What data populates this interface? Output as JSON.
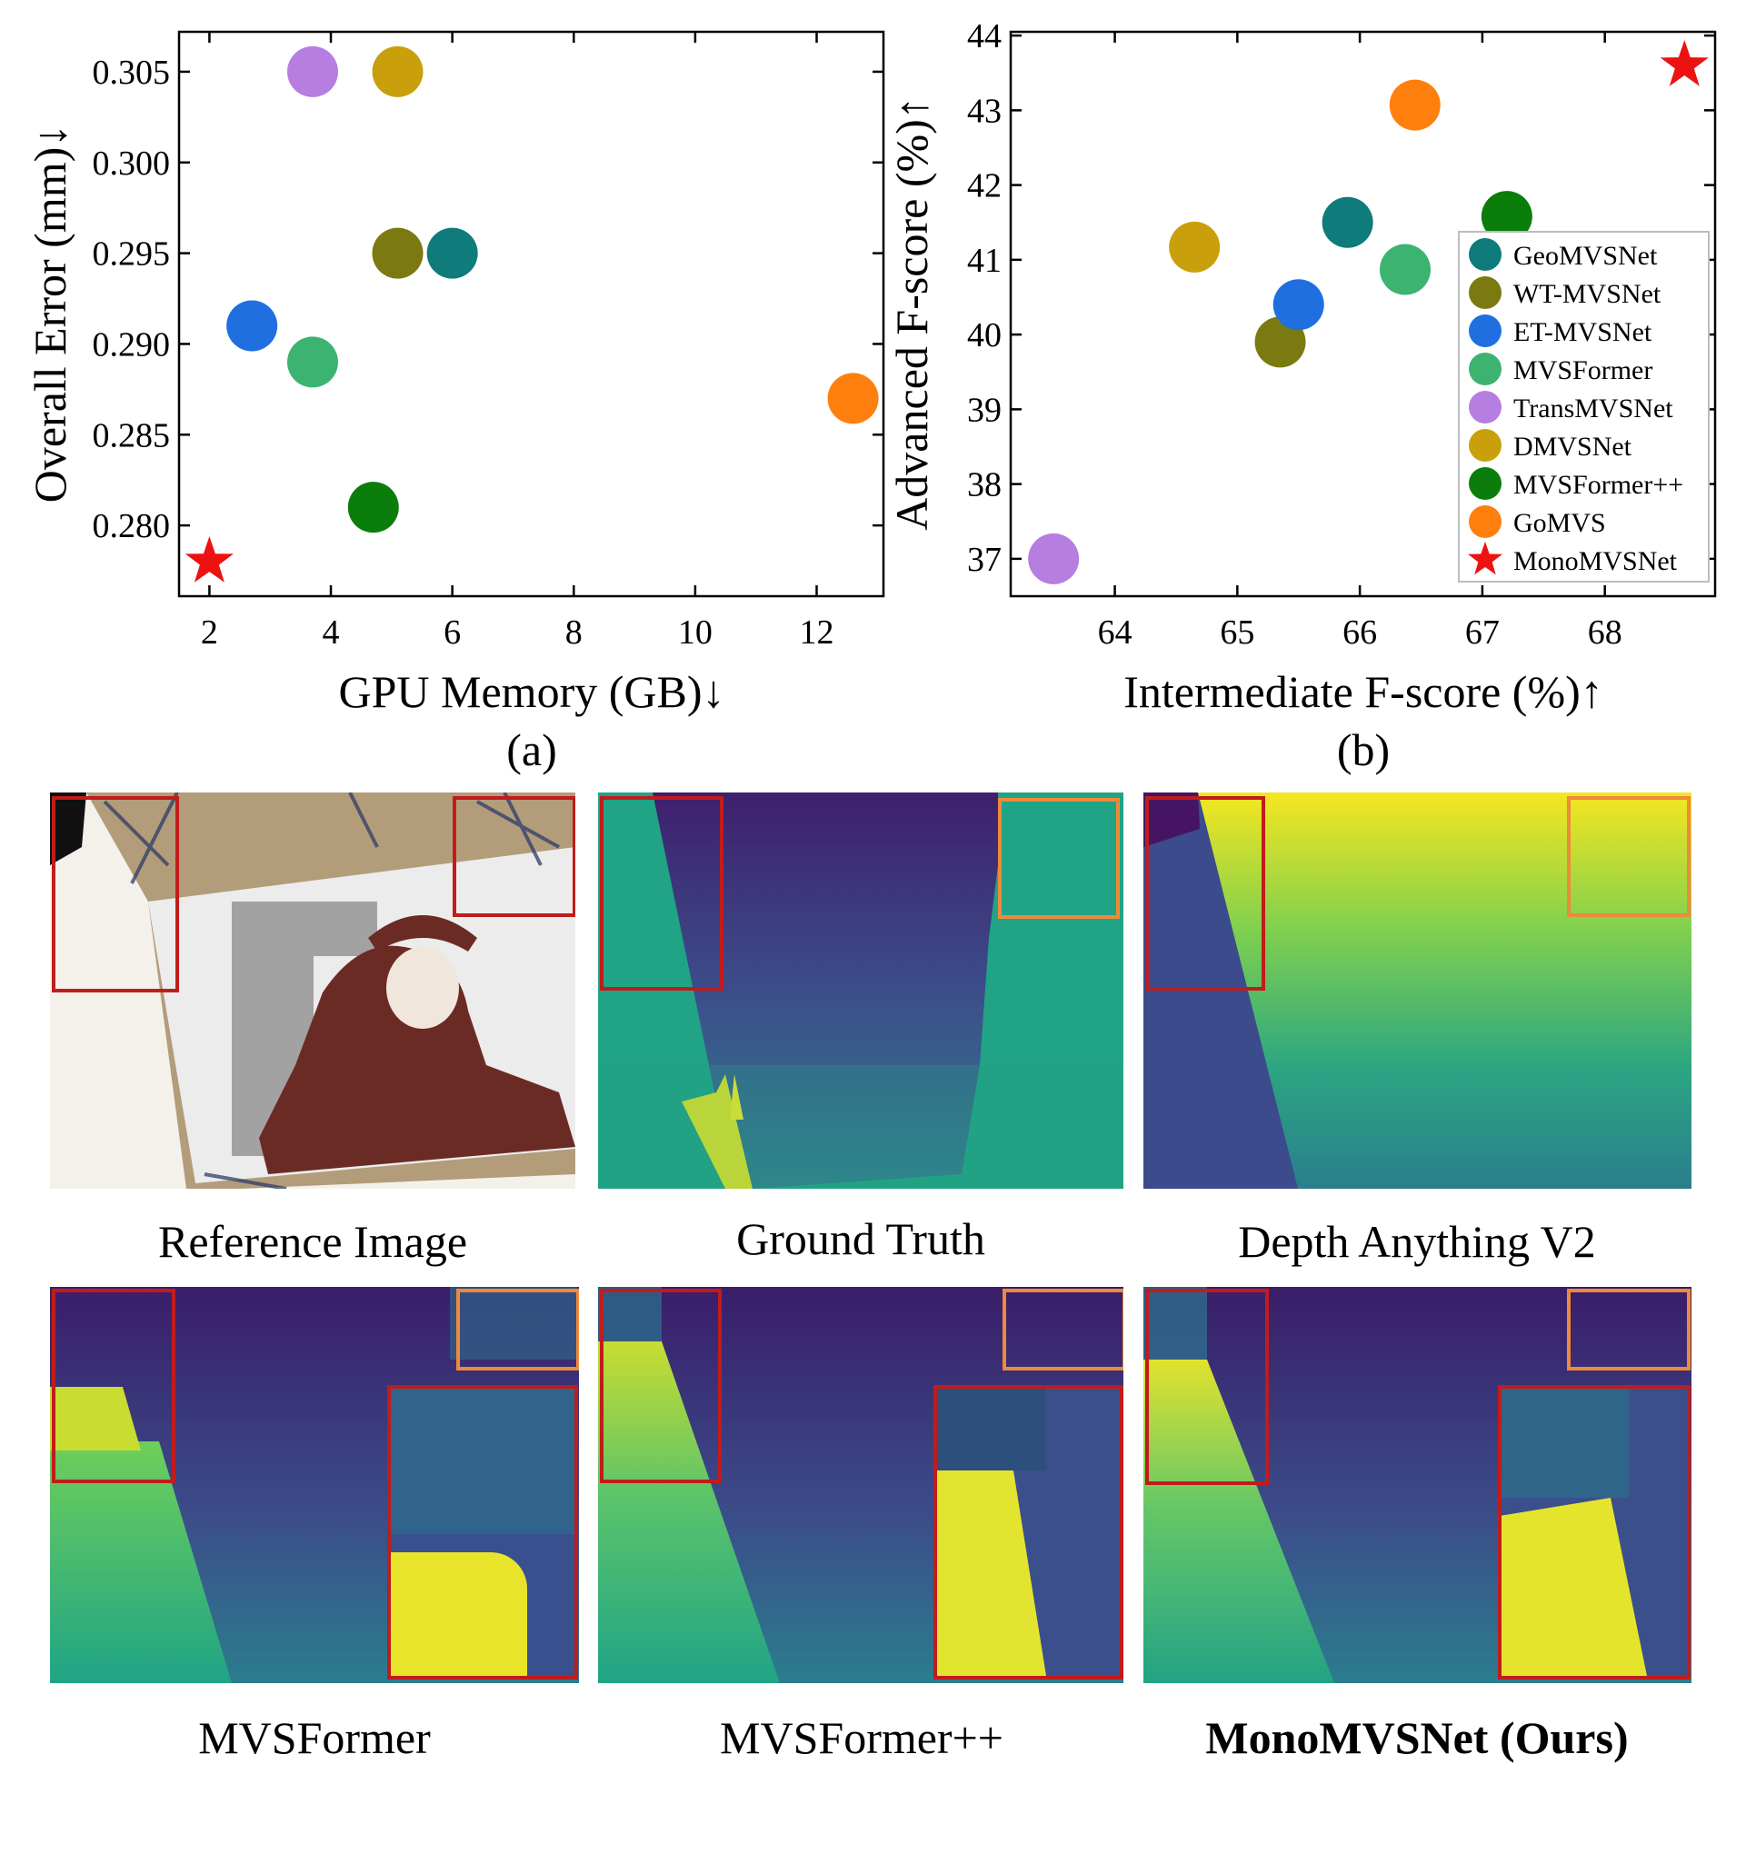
{
  "chart_data": [
    {
      "type": "scatter",
      "id": "a",
      "caption": "(a)",
      "xlabel": "GPU Memory (GB)↓",
      "ylabel": "Overall Error (mm)↓",
      "xlim": [
        1.5,
        13.1
      ],
      "ylim": [
        0.2761,
        0.3072
      ],
      "xticks": [
        2,
        4,
        6,
        8,
        10,
        12
      ],
      "xtick_labels": [
        "2",
        "4",
        "6",
        "8",
        "10",
        "12"
      ],
      "yticks": [
        0.28,
        0.285,
        0.29,
        0.295,
        0.3,
        0.305
      ],
      "ytick_labels": [
        "0.280",
        "0.285",
        "0.290",
        "0.295",
        "0.300",
        "0.305"
      ],
      "points": [
        {
          "name": "GeoMVSNet",
          "x": 6.0,
          "y": 0.295,
          "color": "#0f7b7b",
          "marker": "circle"
        },
        {
          "name": "WT-MVSNet",
          "x": 5.1,
          "y": 0.295,
          "color": "#7a7a10",
          "marker": "circle"
        },
        {
          "name": "ET-MVSNet",
          "x": 2.7,
          "y": 0.291,
          "color": "#1f6fe0",
          "marker": "circle"
        },
        {
          "name": "MVSFormer",
          "x": 3.7,
          "y": 0.289,
          "color": "#3cb371",
          "marker": "circle"
        },
        {
          "name": "TransMVSNet",
          "x": 3.7,
          "y": 0.305,
          "color": "#b67ee0",
          "marker": "circle"
        },
        {
          "name": "DMVSNet",
          "x": 5.1,
          "y": 0.305,
          "color": "#c9a00c",
          "marker": "circle"
        },
        {
          "name": "MVSFormer++",
          "x": 4.7,
          "y": 0.281,
          "color": "#0b7d0b",
          "marker": "circle"
        },
        {
          "name": "GoMVS",
          "x": 12.6,
          "y": 0.287,
          "color": "#ff7f0e",
          "marker": "circle"
        },
        {
          "name": "MonoMVSNet",
          "x": 2.0,
          "y": 0.278,
          "color": "#ee1111",
          "marker": "star"
        }
      ]
    },
    {
      "type": "scatter",
      "id": "b",
      "caption": "(b)",
      "xlabel": "Intermediate F-score (%)↑",
      "ylabel": "Advanced F-score (%)↑",
      "xlim": [
        63.15,
        68.9
      ],
      "ylim": [
        36.5,
        44.05
      ],
      "xticks": [
        64,
        65,
        66,
        67,
        68
      ],
      "xtick_labels": [
        "64",
        "65",
        "66",
        "67",
        "68"
      ],
      "yticks": [
        37,
        38,
        39,
        40,
        41,
        42,
        43,
        44
      ],
      "ytick_labels": [
        "37",
        "38",
        "39",
        "40",
        "41",
        "42",
        "43",
        "44"
      ],
      "legend_position": "right",
      "legend": [
        "GeoMVSNet",
        "WT-MVSNet",
        "ET-MVSNet",
        "MVSFormer",
        "TransMVSNet",
        "DMVSNet",
        "MVSFormer++",
        "GoMVS",
        "MonoMVSNet"
      ],
      "points": [
        {
          "name": "GeoMVSNet",
          "x": 65.9,
          "y": 41.5,
          "color": "#0f7b7b",
          "marker": "circle"
        },
        {
          "name": "WT-MVSNet",
          "x": 65.35,
          "y": 39.9,
          "color": "#7a7a10",
          "marker": "circle"
        },
        {
          "name": "ET-MVSNet",
          "x": 65.5,
          "y": 40.4,
          "color": "#1f6fe0",
          "marker": "circle"
        },
        {
          "name": "MVSFormer",
          "x": 66.37,
          "y": 40.87,
          "color": "#3cb371",
          "marker": "circle"
        },
        {
          "name": "TransMVSNet",
          "x": 63.5,
          "y": 37.0,
          "color": "#b67ee0",
          "marker": "circle"
        },
        {
          "name": "DMVSNet",
          "x": 64.65,
          "y": 41.17,
          "color": "#c9a00c",
          "marker": "circle"
        },
        {
          "name": "MVSFormer++",
          "x": 67.2,
          "y": 41.58,
          "color": "#0b7d0b",
          "marker": "circle"
        },
        {
          "name": "GoMVS",
          "x": 66.45,
          "y": 43.07,
          "color": "#ff7f0e",
          "marker": "circle"
        },
        {
          "name": "MonoMVSNet",
          "x": 68.65,
          "y": 43.6,
          "color": "#ee1111",
          "marker": "star"
        }
      ]
    }
  ],
  "panels": {
    "reference_image": "Reference Image",
    "ground_truth": "Ground Truth",
    "depth_anything": "Depth Anything V2",
    "mvsformer": "MVSFormer",
    "mvsformerpp": "MVSFormer++",
    "ours": "MonoMVSNet (Ours)"
  },
  "box_colors": {
    "red": "#c01c1c",
    "orange": "#ee8a3a"
  }
}
